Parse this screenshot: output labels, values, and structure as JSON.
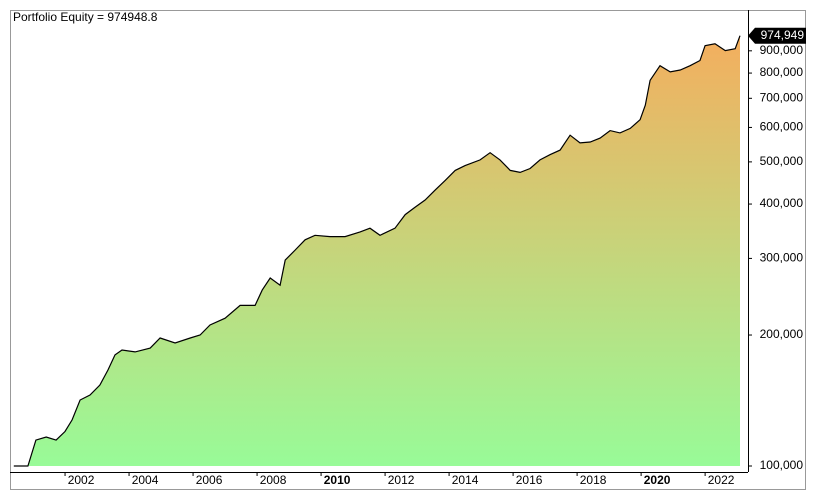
{
  "chart_data": {
    "type": "area",
    "title": "Portfolio Equity = 974948.8",
    "x": [
      2000.4,
      2000.84,
      2001.09,
      2001.41,
      2001.72,
      2002.0,
      2002.22,
      2002.47,
      2002.78,
      2003.09,
      2003.34,
      2003.56,
      2003.78,
      2004.19,
      2004.66,
      2004.97,
      2005.44,
      2005.91,
      2006.22,
      2006.53,
      2007.0,
      2007.47,
      2007.94,
      2008.16,
      2008.41,
      2008.72,
      2008.88,
      2009.19,
      2009.5,
      2009.81,
      2010.28,
      2010.75,
      2011.22,
      2011.53,
      2011.84,
      2012.31,
      2012.63,
      2012.94,
      2013.25,
      2013.56,
      2013.88,
      2014.19,
      2014.5,
      2014.97,
      2015.28,
      2015.59,
      2015.91,
      2016.22,
      2016.53,
      2016.84,
      2017.16,
      2017.47,
      2017.78,
      2018.09,
      2018.41,
      2018.72,
      2019.03,
      2019.34,
      2019.66,
      2019.97,
      2020.13,
      2020.28,
      2020.59,
      2020.91,
      2021.22,
      2021.53,
      2021.84,
      2022.0,
      2022.31,
      2022.63,
      2022.94,
      2023.09
    ],
    "values": [
      100000,
      100000,
      114700,
      116600,
      114700,
      120000,
      127600,
      141800,
      145600,
      153500,
      166100,
      180000,
      184800,
      182900,
      186600,
      196900,
      191700,
      196900,
      200000,
      210900,
      218600,
      234000,
      234000,
      253700,
      270500,
      260400,
      297300,
      313700,
      331100,
      339000,
      336700,
      336700,
      345200,
      352000,
      339000,
      352000,
      378300,
      393600,
      408700,
      430500,
      453400,
      478000,
      490300,
      505300,
      525000,
      505300,
      478000,
      473000,
      482800,
      505300,
      519700,
      532300,
      575800,
      552700,
      555400,
      567000,
      590000,
      583000,
      597000,
      625000,
      675000,
      770000,
      832000,
      805000,
      813000,
      832000,
      855000,
      925000,
      934000,
      901000,
      910000,
      974949
    ],
    "last_value_label": "974,949",
    "line_color": "#000000",
    "fill_gradient": [
      "#98fb98",
      "#f4ae5e"
    ],
    "log_scale": true,
    "xlim": [
      2000.28,
      2023.34
    ],
    "xticks": [
      2002,
      2004,
      2006,
      2008,
      2010,
      2012,
      2014,
      2016,
      2018,
      2020,
      2022
    ],
    "ylim": [
      96875,
      1117000
    ],
    "yticks": [
      {
        "value": 100000,
        "label": "100,000"
      },
      {
        "value": 200000,
        "label": "200,000"
      },
      {
        "value": 300000,
        "label": "300,000"
      },
      {
        "value": 400000,
        "label": "400,000"
      },
      {
        "value": 500000,
        "label": "500,000"
      },
      {
        "value": 600000,
        "label": "600,000"
      },
      {
        "value": 700000,
        "label": "700,000"
      },
      {
        "value": 800000,
        "label": "800,000"
      },
      {
        "value": 900000,
        "label": "900,000"
      }
    ]
  }
}
